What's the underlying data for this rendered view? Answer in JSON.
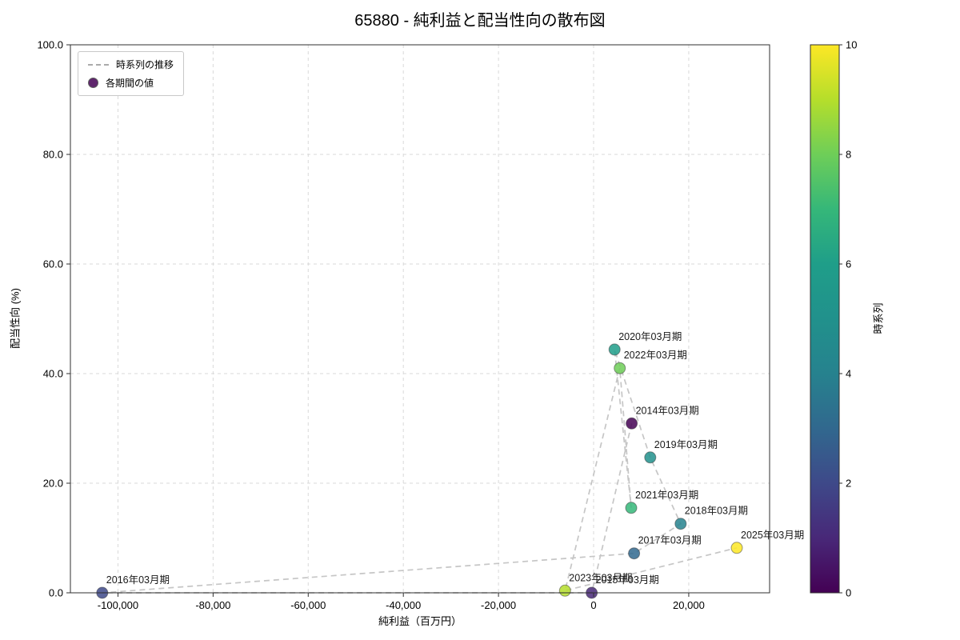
{
  "chart_data": {
    "type": "scatter",
    "title": "65880 - 純利益と配当性向の散布図",
    "xlabel": "純利益（百万円）",
    "ylabel": "配当性向 (%)",
    "xlim": [
      -110000,
      37000
    ],
    "ylim": [
      0,
      100
    ],
    "grid": true,
    "x_ticks": [
      -100000,
      -80000,
      -60000,
      -40000,
      -20000,
      0,
      20000
    ],
    "x_tick_labels": [
      "-100,000",
      "-80,000",
      "-60,000",
      "-40,000",
      "-20,000",
      "0",
      "20,000"
    ],
    "y_ticks": [
      0,
      20,
      40,
      60,
      80,
      100
    ],
    "y_tick_labels": [
      "0.0",
      "20.0",
      "40.0",
      "60.0",
      "80.0",
      "100.0"
    ],
    "legend": {
      "position": "upper-left",
      "entries": [
        {
          "type": "dashed-line",
          "label": "時系列の推移"
        },
        {
          "type": "dot",
          "label": "各期間の値"
        }
      ]
    },
    "points": [
      {
        "label": "2014年03月期",
        "x": 8000,
        "y": 30.9,
        "t": 0,
        "color": "#440154"
      },
      {
        "label": "2015年03月期",
        "x": -400,
        "y": 0.0,
        "t": 1,
        "color": "#482878"
      },
      {
        "label": "2016年03月期",
        "x": -103300,
        "y": 0.0,
        "t": 2,
        "color": "#3e4989"
      },
      {
        "label": "2017年03月期",
        "x": 8500,
        "y": 7.2,
        "t": 3,
        "color": "#31688e"
      },
      {
        "label": "2018年03月期",
        "x": 18300,
        "y": 12.6,
        "t": 4,
        "color": "#26828e"
      },
      {
        "label": "2019年03月期",
        "x": 11900,
        "y": 24.7,
        "t": 5,
        "color": "#21918c"
      },
      {
        "label": "2020年03月期",
        "x": 4400,
        "y": 44.4,
        "t": 6,
        "color": "#1f9e89"
      },
      {
        "label": "2021年03月期",
        "x": 7900,
        "y": 15.5,
        "t": 7,
        "color": "#35b779"
      },
      {
        "label": "2022年03月期",
        "x": 5500,
        "y": 41.0,
        "t": 8,
        "color": "#6ece58"
      },
      {
        "label": "2023年03月期",
        "x": -6000,
        "y": 0.4,
        "t": 9,
        "color": "#b5de2b"
      },
      {
        "label": "2025年03月期",
        "x": 30100,
        "y": 8.2,
        "t": 10,
        "color": "#fde725"
      }
    ],
    "colorbar": {
      "label": "時系列",
      "min": 0,
      "max": 10,
      "ticks": [
        0,
        2,
        4,
        6,
        8,
        10
      ],
      "colormap": "viridis",
      "stops": [
        "#440154",
        "#482878",
        "#3e4989",
        "#31688e",
        "#26828e",
        "#21918c",
        "#1f9e89",
        "#35b779",
        "#6ece58",
        "#b5de2b",
        "#fde725"
      ]
    },
    "colors": {
      "series_line": "#b8b8b8",
      "grid_line": "#d9d9d9",
      "frame": "#2f2f2f"
    }
  }
}
